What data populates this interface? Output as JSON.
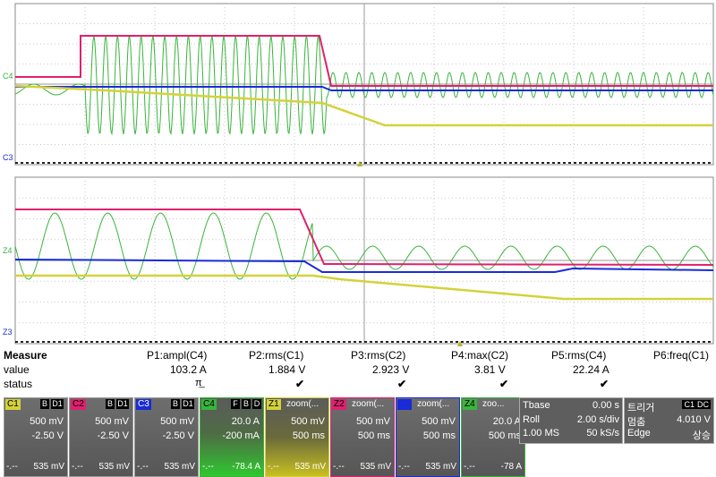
{
  "colors": {
    "c1": "#d4d23a",
    "c2": "#e0206e",
    "c3": "#1a2bd8",
    "c4": "#3ab43c",
    "zoom_yellow": "#b8b430",
    "grid": "#8a8a8a",
    "tile_bg": "#606060"
  },
  "scope": {
    "upper_trace_label": "C4",
    "upper_ground_label": "C3",
    "lower_trace_label": "Z4",
    "lower_ground_label": "Z3"
  },
  "measure": {
    "title": "Measure",
    "row_value": "value",
    "row_status": "status",
    "params": [
      {
        "name": "P1:ampl(C4)",
        "value": "103.2 A",
        "status": "π̲"
      },
      {
        "name": "P2:rms(C1)",
        "value": "1.884 V",
        "status": "✔"
      },
      {
        "name": "P3:rms(C2)",
        "value": "2.923 V",
        "status": "✔"
      },
      {
        "name": "P4:max(C2)",
        "value": "3.81 V",
        "status": "✔"
      },
      {
        "name": "P5:rms(C4)",
        "value": "22.24 A",
        "status": "✔"
      },
      {
        "name": "P6:freq(C1)",
        "value": "",
        "status": ""
      }
    ]
  },
  "channels": [
    {
      "label": "C1",
      "b1": "B",
      "b2": "D1",
      "scale": "500 mV",
      "offset": "-2.50 V",
      "bottom": "535 mV",
      "tag_color": "#d4d23a"
    },
    {
      "label": "C2",
      "b1": "B",
      "b2": "D1",
      "scale": "500 mV",
      "offset": "-2.50 V",
      "bottom": "535 mV",
      "tag_color": "#e0206e"
    },
    {
      "label": "C3",
      "b1": "B",
      "b2": "D1",
      "scale": "500 mV",
      "offset": "-2.50 V",
      "bottom": "535 mV",
      "tag_color": "#1a2bd8"
    },
    {
      "label": "C4",
      "b1": "F",
      "b2": "B",
      "b3": "D",
      "scale": "20.0 A",
      "offset": "-200 mA",
      "bottom": "-78.4 A",
      "tag_color": "#3ab43c"
    },
    {
      "label": "Z1",
      "title": "zoom(...",
      "scale": "500 mV",
      "offset": "500 ms",
      "bottom": "535 mV",
      "tag_color": "#d4d23a"
    },
    {
      "label": "Z2",
      "title": "zoom(...",
      "scale": "500 mV",
      "offset": "500 ms",
      "bottom": "535 mV",
      "tag_color": "#e0206e"
    },
    {
      "label": "Z3",
      "title": "zoom(...",
      "scale": "500 mV",
      "offset": "500 ms",
      "bottom": "535 mV",
      "tag_color": "#1a2bd8"
    },
    {
      "label": "Z4",
      "title": "zoo...",
      "scale": "20.0 A",
      "offset": "500 ms",
      "bottom": "-78 A",
      "tag_color": "#3ab43c"
    }
  ],
  "dash": "-.--",
  "timebase": {
    "title": "Tbase",
    "delay": "0.00 s",
    "mode": "Roll",
    "tdiv": "2.00 s/div",
    "samples": "1.00 MS",
    "rate": "50 kS/s"
  },
  "trigger": {
    "title": "트리거",
    "src": "C1",
    "coupling": "DC",
    "state": "멈춤",
    "level": "4.010 V",
    "type": "Edge",
    "slope": "상승"
  }
}
